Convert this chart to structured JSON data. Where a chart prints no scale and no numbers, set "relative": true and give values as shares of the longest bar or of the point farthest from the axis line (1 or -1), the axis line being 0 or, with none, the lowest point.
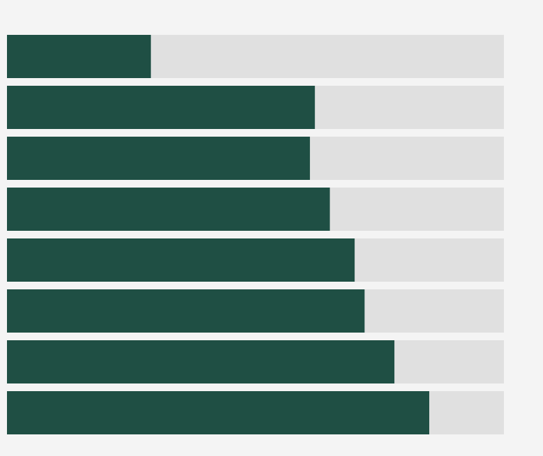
{
  "chart_data": {
    "type": "bar",
    "orientation": "horizontal",
    "stacked": true,
    "relative": true,
    "categories": [
      null,
      null,
      null,
      null,
      null,
      null,
      null,
      null
    ],
    "series": [
      {
        "color": "#1f4f44",
        "values": [
          0.29,
          0.62,
          0.61,
          0.65,
          0.7,
          0.72,
          0.78,
          0.85
        ]
      },
      {
        "color": "#e0e0e0",
        "values": [
          0.71,
          0.38,
          0.39,
          0.35,
          0.3,
          0.28,
          0.22,
          0.15
        ]
      }
    ],
    "grid": false,
    "legend": false
  }
}
